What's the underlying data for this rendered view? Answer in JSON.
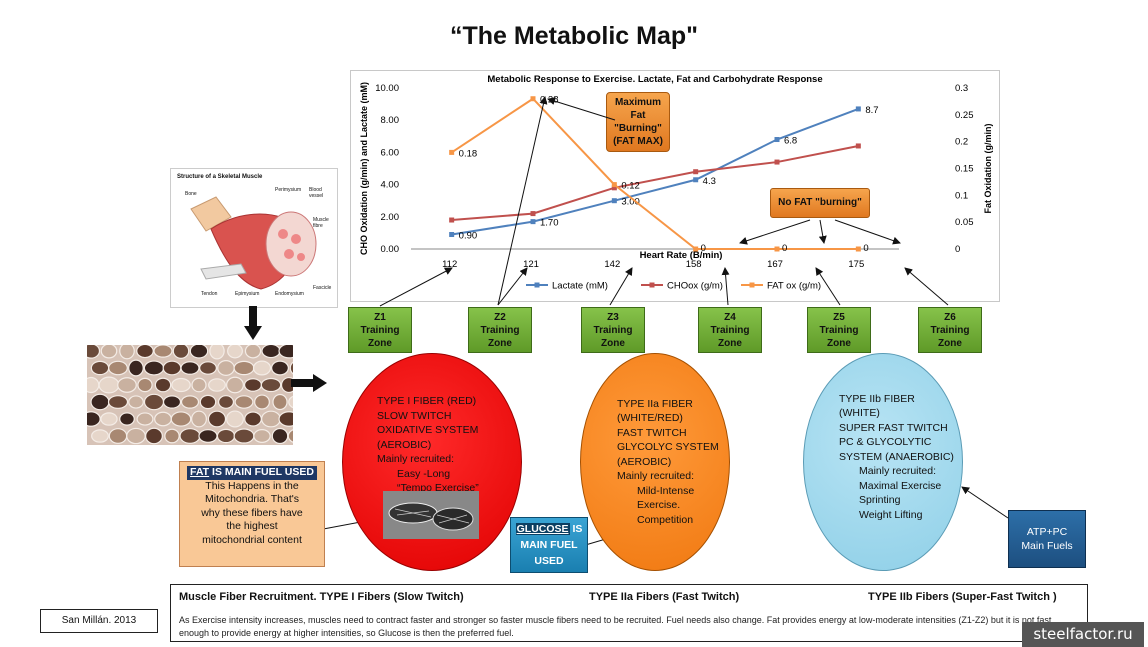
{
  "page": {
    "title": "“The Metabolic Map\"",
    "author": "San Millán. 2013",
    "watermark": "steelfactor.ru"
  },
  "chart_data": {
    "type": "line",
    "title": "Metabolic Response to Exercise. Lactate, Fat and Carbohydrate Response",
    "xlabel": "Heart Rate (B/min)",
    "ylabel": "CHO Oxidation (g/min) and Lactate (mM)",
    "y2label": "Fat Oxidation (g/min)",
    "categories": [
      "112",
      "121",
      "142",
      "158",
      "167",
      "175"
    ],
    "ylim": [
      0,
      10
    ],
    "y2lim": [
      0,
      0.3
    ],
    "yticks": [
      "0.00",
      "2.00",
      "4.00",
      "6.00",
      "8.00",
      "10.00"
    ],
    "y2ticks": [
      "0",
      "0.05",
      "0.1",
      "0.15",
      "0.2",
      "0.25",
      "0.3"
    ],
    "series": [
      {
        "name": "Lactate (mM)",
        "axis": "left",
        "color": "#4f81bd",
        "values": [
          0.9,
          1.7,
          3.0,
          4.3,
          6.8,
          8.7
        ],
        "labels": [
          "0.90",
          "1.70",
          "3.00",
          "4.3",
          "6.8",
          "8.7"
        ]
      },
      {
        "name": "CHOox (g/m)",
        "axis": "left",
        "color": "#c0504d",
        "values": [
          1.8,
          2.2,
          3.8,
          4.8,
          5.4,
          6.4
        ],
        "labels": [
          "",
          "",
          "",
          "",
          "",
          ""
        ]
      },
      {
        "name": "FAT ox (g/m)",
        "axis": "right",
        "color": "#f79646",
        "values": [
          0.18,
          0.28,
          0.12,
          0,
          0,
          0
        ],
        "labels": [
          "0.18",
          "0.28",
          "0.12",
          "0",
          "0",
          "0"
        ]
      }
    ],
    "annotations": {
      "fat_max": "Maximum Fat \"Burning\" (FAT MAX)",
      "no_fat": "No FAT \"burning\""
    }
  },
  "zones": [
    {
      "name": "Z1",
      "line2": "Training",
      "line3": "Zone"
    },
    {
      "name": "Z2",
      "line2": "Training",
      "line3": "Zone"
    },
    {
      "name": "Z3",
      "line2": "Training",
      "line3": "Zone"
    },
    {
      "name": "Z4",
      "line2": "Training",
      "line3": "Zone"
    },
    {
      "name": "Z5",
      "line2": "Training",
      "line3": "Zone"
    },
    {
      "name": "Z6",
      "line2": "Training",
      "line3": "Zone"
    }
  ],
  "fibers": {
    "type1": [
      "TYPE I FIBER (RED)",
      "SLOW TWITCH",
      "OXIDATIVE SYSTEM",
      "(AEROBIC)",
      "Mainly recruited:",
      "Easy -Long",
      "“Tempo Exercise”"
    ],
    "type2a": [
      "TYPE IIa FIBER",
      "(WHITE/RED)",
      "FAST TWITCH",
      "GLYCOLYC SYSTEM",
      "(AEROBIC)",
      "Mainly recruited:",
      "Mild-Intense Exercise.",
      "Competition"
    ],
    "type2b": [
      "TYPE IIb FIBER",
      "(WHITE)",
      "SUPER FAST TWITCH",
      "PC & GLYCOLYTIC",
      "SYSTEM (ANAEROBIC)",
      "Mainly recruited:",
      "Maximal Exercise",
      "Sprinting",
      "Weight Lifting"
    ]
  },
  "fat_box": {
    "highlight": "FAT",
    "title_rest": " IS MAIN FUEL USED",
    "lines": [
      "This Happens in the",
      "Mitochondria. That's",
      "why these fibers have",
      "the highest",
      "mitochondrial content"
    ]
  },
  "glucose_box": {
    "highlight": "GLUCOSE",
    "title_rest": " IS",
    "line2": "MAIN FUEL",
    "line3": "USED"
  },
  "atp_box": {
    "line1": "ATP+PC",
    "line2": "Main Fuels"
  },
  "muscle_diagram": {
    "title": "Structure of a Skeletal Muscle",
    "labels": [
      "Bone",
      "Perimysium",
      "Blood vessel",
      "Muscle fibre",
      "Tendon",
      "Epimysium",
      "Endomysium",
      "Fascicle"
    ]
  },
  "footer": {
    "h1": "Muscle Fiber Recruitment.  TYPE I Fibers (Slow Twitch)",
    "h2": "TYPE IIa Fibers (Fast Twitch)",
    "h3": "TYPE IIb Fibers (Super-Fast Twitch )",
    "desc": "As Exercise intensity increases, muscles need to contract faster and stronger so faster muscle fibers need to be recruited. Fuel needs also change. Fat provides energy at low-moderate intensities (Z1-Z2) but it is not fast enough to provide energy at higher intensities, so Glucose is then the preferred fuel."
  }
}
